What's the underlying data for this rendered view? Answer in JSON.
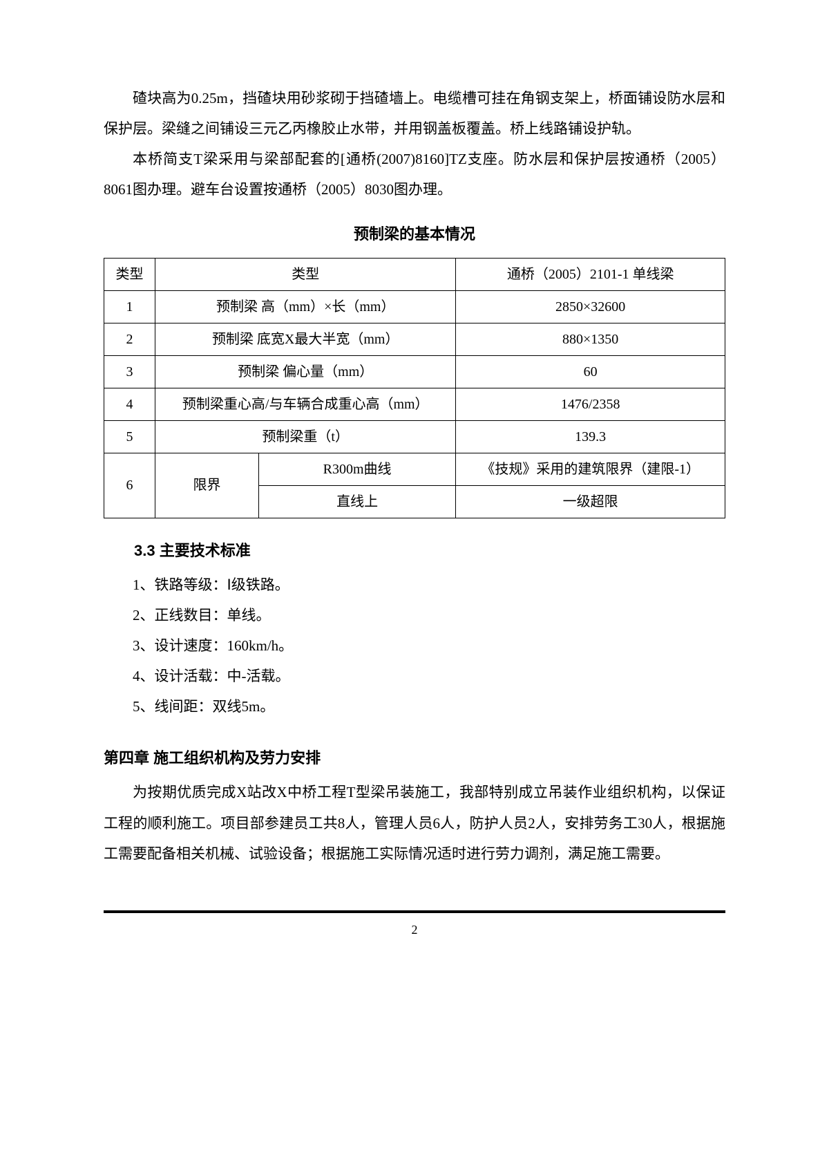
{
  "paragraphs": {
    "p1": "碴块高为0.25m，挡碴块用砂浆砌于挡碴墙上。电缆槽可挂在角钢支架上，桥面铺设防水层和保护层。梁缝之间铺设三元乙丙橡胶止水带，并用钢盖板覆盖。桥上线路铺设护轨。",
    "p2": "本桥简支T梁采用与梁部配套的[通桥(2007)8160]TZ支座。防水层和保护层按通桥（2005）8061图办理。避车台设置按通桥（2005）8030图办理。"
  },
  "table": {
    "title": "预制梁的基本情况",
    "header": {
      "col1": "类型",
      "col2": "类型",
      "col3": "通桥（2005）2101-1 单线梁"
    },
    "rows": [
      {
        "idx": "1",
        "label": "预制梁 高（mm）×长（mm）",
        "value": "2850×32600"
      },
      {
        "idx": "2",
        "label": "预制梁 底宽X最大半宽（mm）",
        "value": "880×1350"
      },
      {
        "idx": "3",
        "label": "预制梁 偏心量（mm）",
        "value": "60"
      },
      {
        "idx": "4",
        "label": "预制梁重心高/与车辆合成重心高（mm）",
        "value": "1476/2358"
      },
      {
        "idx": "5",
        "label": "预制梁重（t）",
        "value": "139.3"
      }
    ],
    "row6": {
      "idx": "6",
      "label": "限界",
      "sub1": "R300m曲线",
      "val1": "《技规》采用的建筑限界（建限-1）",
      "sub2": "直线上",
      "val2": "一级超限"
    }
  },
  "section3_3": {
    "heading": "3.3  主要技术标准",
    "items": [
      "1、铁路等级：Ⅰ级铁路。",
      "2、正线数目：单线。",
      "3、设计速度：160km/h。",
      "4、设计活载：中-活载。",
      "5、线间距：双线5m。"
    ]
  },
  "chapter4": {
    "heading": "第四章    施工组织机构及劳力安排",
    "body": "为按期优质完成X站改X中桥工程T型梁吊装施工，我部特别成立吊装作业组织机构，以保证工程的顺利施工。项目部参建员工共8人，管理人员6人，防护人员2人，安排劳务工30人，根据施工需要配备相关机械、试验设备；根据施工实际情况适时进行劳力调剂，满足施工需要。"
  },
  "pageNumber": "2"
}
